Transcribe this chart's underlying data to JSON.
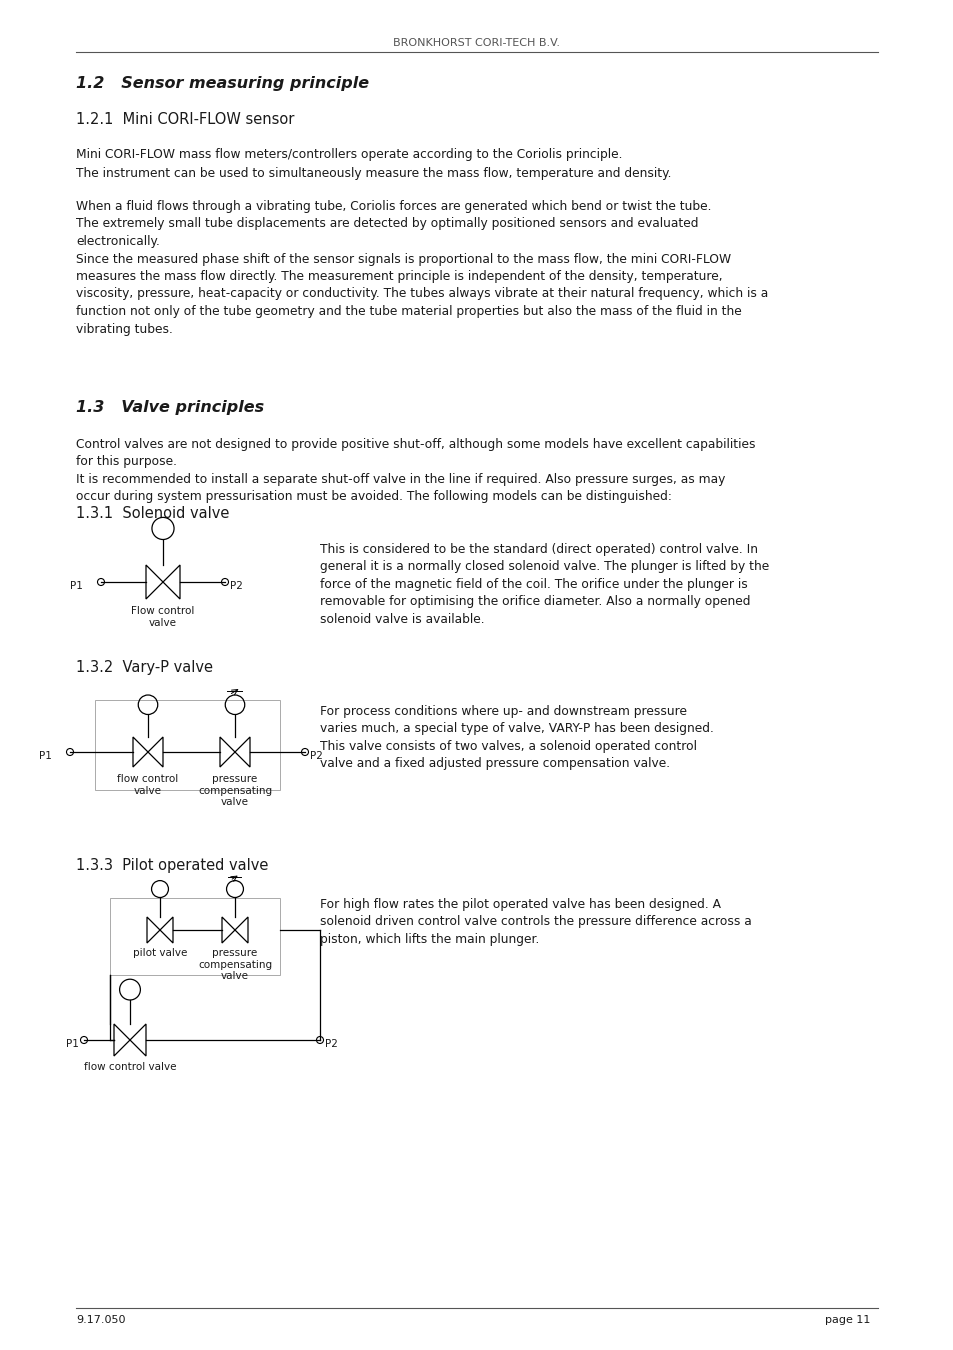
{
  "header_text": "BRONKHORST CORI-TECH B.V.",
  "footer_left": "9.17.050",
  "footer_right": "page 11",
  "section_12_title": "1.2   Sensor measuring principle",
  "section_121_title": "1.2.1  Mini CORI-FLOW sensor",
  "section_121_para1": "Mini CORI-FLOW mass flow meters/controllers operate according to the Coriolis principle.\nThe instrument can be used to simultaneously measure the mass flow, temperature and density.",
  "section_121_para2": "When a fluid flows through a vibrating tube, Coriolis forces are generated which bend or twist the tube.\nThe extremely small tube displacements are detected by optimally positioned sensors and evaluated\nelectronically.\nSince the measured phase shift of the sensor signals is proportional to the mass flow, the mini CORI-FLOW\nmeasures the mass flow directly. The measurement principle is independent of the density, temperature,\nviscosity, pressure, heat-capacity or conductivity. The tubes always vibrate at their natural frequency, which is a\nfunction not only of the tube geometry and the tube material properties but also the mass of the fluid in the\nvibrating tubes.",
  "section_13_title": "1.3   Valve principles",
  "section_13_para1": "Control valves are not designed to provide positive shut-off, although some models have excellent capabilities\nfor this purpose.\nIt is recommended to install a separate shut-off valve in the line if required. Also pressure surges, as may\noccur during system pressurisation must be avoided. The following models can be distinguished:",
  "section_131_title": "1.3.1  Solenoid valve",
  "section_131_text": "This is considered to be the standard (direct operated) control valve. In\ngeneral it is a normally closed solenoid valve. The plunger is lifted by the\nforce of the magnetic field of the coil. The orifice under the plunger is\nremovable for optimising the orifice diameter. Also a normally opened\nsolenoid valve is available.",
  "section_132_title": "1.3.2  Vary-P valve",
  "section_132_text": "For process conditions where up- and downstream pressure\nvaries much, a special type of valve, VARY-P has been designed.\nThis valve consists of two valves, a solenoid operated control\nvalve and a fixed adjusted pressure compensation valve.",
  "section_133_title": "1.3.3  Pilot operated valve",
  "section_133_text": "For high flow rates the pilot operated valve has been designed. A\nsolenoid driven control valve controls the pressure difference across a\npiston, which lifts the main plunger.",
  "bg_color": "#ffffff",
  "text_color": "#1a1a1a",
  "header_color": "#555555",
  "line_color": "#555555"
}
